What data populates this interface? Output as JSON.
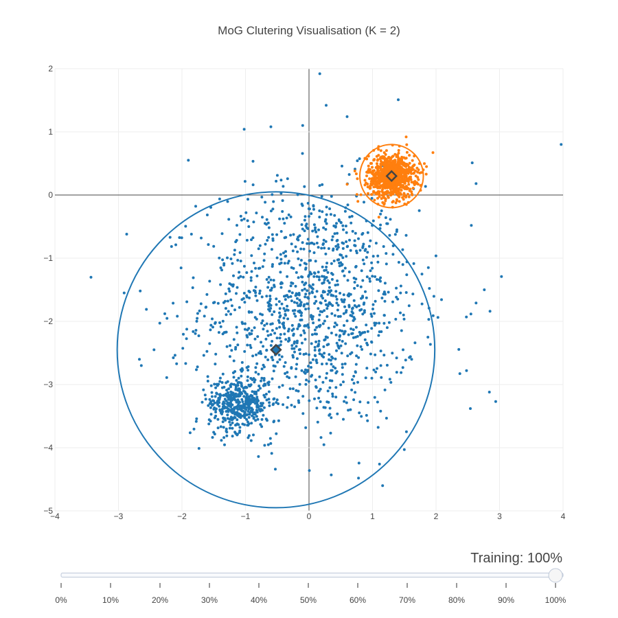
{
  "chart_data": {
    "type": "scatter",
    "title": "MoG Clutering Visualisation (K = 2)",
    "xlabel": "",
    "ylabel": "",
    "xlim": [
      -4,
      4
    ],
    "ylim": [
      -5,
      2
    ],
    "x_ticks": [
      -4,
      -3,
      -2,
      -1,
      0,
      1,
      2,
      3,
      4
    ],
    "y_ticks": [
      2,
      1,
      0,
      -1,
      -2,
      -3,
      -4,
      -5
    ],
    "x_tick_labels": [
      "−4",
      "−3",
      "−2",
      "−1",
      "0",
      "1",
      "2",
      "3",
      "4"
    ],
    "y_tick_labels": [
      "2",
      "1",
      "0",
      "−1",
      "−2",
      "−3",
      "−4",
      "−5"
    ],
    "grid": true,
    "zero_lines": true,
    "clusters": [
      {
        "color": "#1f77b4",
        "centroid": [
          -0.52,
          -2.45
        ],
        "radius": 2.5,
        "groups": [
          {
            "count": 1200,
            "center": [
              0.0,
              -1.75
            ],
            "std": [
              0.85,
              0.95
            ]
          },
          {
            "count": 450,
            "center": [
              -1.1,
              -3.3
            ],
            "std": [
              0.24,
              0.22
            ]
          }
        ],
        "outliers": [
          [
            0.17,
            1.92
          ],
          [
            0.27,
            1.42
          ],
          [
            0.6,
            1.24
          ],
          [
            -0.1,
            1.1
          ],
          [
            -0.6,
            1.08
          ],
          [
            -1.02,
            1.04
          ],
          [
            3.97,
            0.8
          ],
          [
            2.57,
            0.51
          ],
          [
            2.63,
            0.18
          ],
          [
            -1.9,
            0.55
          ],
          [
            -2.87,
            -0.62
          ],
          [
            -2.91,
            -1.55
          ],
          [
            -2.67,
            -2.6
          ],
          [
            -2.64,
            -2.7
          ],
          [
            -2.24,
            -2.89
          ],
          [
            3.03,
            -1.29
          ],
          [
            2.85,
            -1.84
          ],
          [
            2.76,
            -1.5
          ],
          [
            2.63,
            -1.71
          ],
          [
            2.84,
            -3.12
          ],
          [
            2.94,
            -3.27
          ],
          [
            2.54,
            -3.38
          ],
          [
            2.48,
            -2.78
          ],
          [
            0.35,
            -4.43
          ],
          [
            -0.53,
            -4.34
          ],
          [
            1.11,
            -4.26
          ],
          [
            1.5,
            -4.03
          ],
          [
            -2.56,
            -1.81
          ],
          [
            -2.44,
            -2.45
          ]
        ]
      },
      {
        "color": "#ff7f0e",
        "centroid": [
          1.3,
          0.3
        ],
        "radius": 0.5,
        "groups": [
          {
            "count": 900,
            "center": [
              1.3,
              0.3
            ],
            "std": [
              0.18,
              0.17
            ]
          }
        ],
        "outliers": [
          [
            0.6,
            0.17
          ],
          [
            0.77,
            -0.1
          ],
          [
            0.88,
            0.58
          ],
          [
            1.85,
            0.45
          ],
          [
            1.53,
            0.92
          ],
          [
            1.1,
            -0.35
          ]
        ]
      }
    ]
  },
  "slider": {
    "label": "Training: 100%",
    "value_percent": 100,
    "steps": [
      "0%",
      "10%",
      "20%",
      "30%",
      "40%",
      "50%",
      "60%",
      "70%",
      "80%",
      "90%",
      "100%"
    ]
  }
}
